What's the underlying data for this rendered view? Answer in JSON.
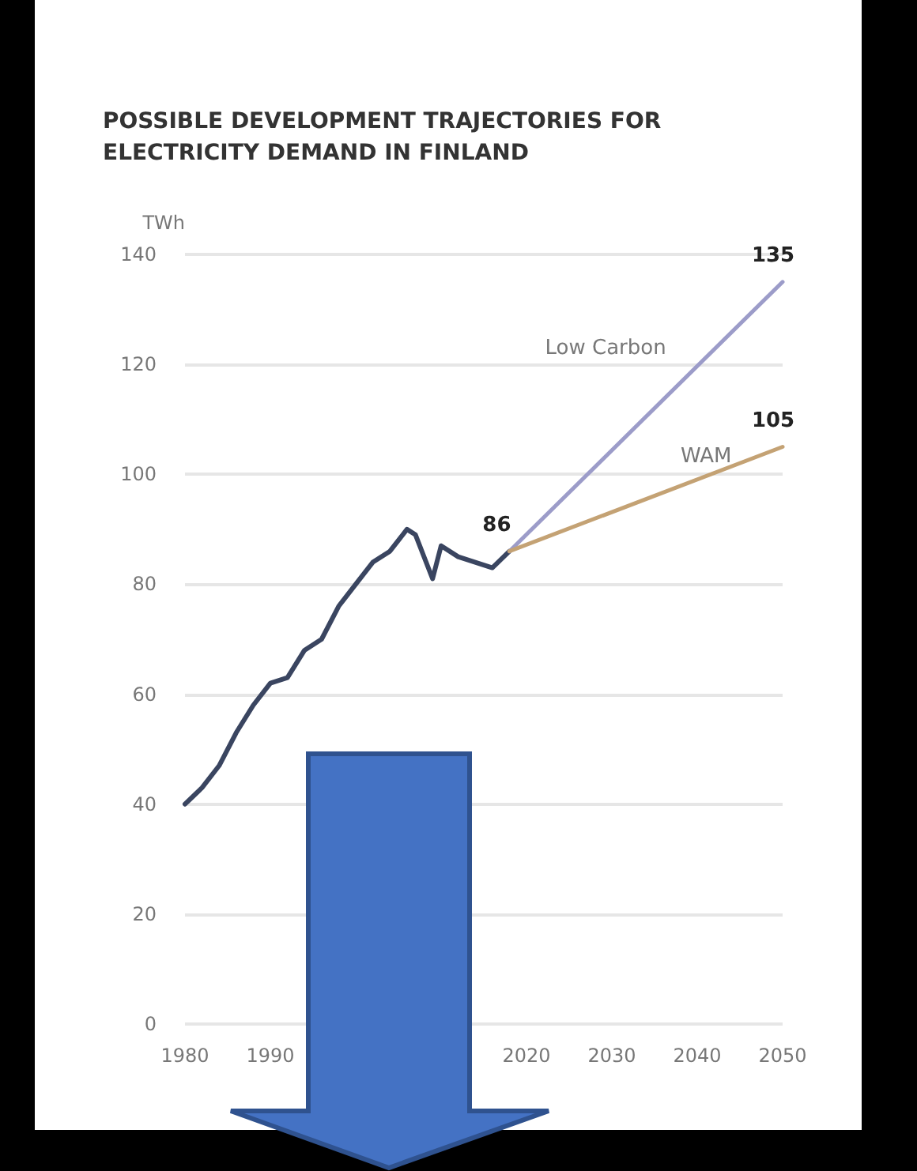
{
  "chart_data": {
    "type": "line",
    "title": "POSSIBLE DEVELOPMENT TRAJECTORIES FOR ELECTRICITY DEMAND IN FINLAND",
    "ylabel": "TWh",
    "xlim": [
      1980,
      2050
    ],
    "xticks": [
      1980,
      1990,
      2020,
      2030,
      2040,
      2050
    ],
    "ylim": [
      0,
      140
    ],
    "yticks": [
      0,
      20,
      40,
      60,
      80,
      100,
      120,
      140
    ],
    "grid": "y",
    "legend": false,
    "marker": "none",
    "series": [
      {
        "color": "#3a4560",
        "x": [
          1980,
          1982,
          1984,
          1986,
          1988,
          1990,
          1992,
          1994,
          1996,
          1998,
          2000,
          2002,
          2004,
          2006,
          2007,
          2009,
          2010,
          2012,
          2014,
          2016,
          2018
        ],
        "values": [
          40,
          43,
          47,
          53,
          58,
          62,
          63,
          68,
          70,
          76,
          80,
          84,
          86,
          90,
          89,
          81,
          87,
          85,
          84,
          83,
          86
        ],
        "value_labels": [
          null,
          null,
          null,
          null,
          null,
          null,
          null,
          null,
          null,
          null,
          null,
          null,
          null,
          null,
          null,
          null,
          null,
          null,
          null,
          null,
          "86"
        ]
      },
      {
        "name": "Low Carbon",
        "color": "#9c9cc9",
        "x": [
          2018,
          2050
        ],
        "values": [
          86,
          135
        ],
        "value_labels": [
          null,
          "135"
        ]
      },
      {
        "name": "WAM",
        "color": "#c4a274",
        "x": [
          2018,
          2050
        ],
        "values": [
          86,
          105
        ],
        "value_labels": [
          null,
          "105"
        ]
      }
    ]
  }
}
